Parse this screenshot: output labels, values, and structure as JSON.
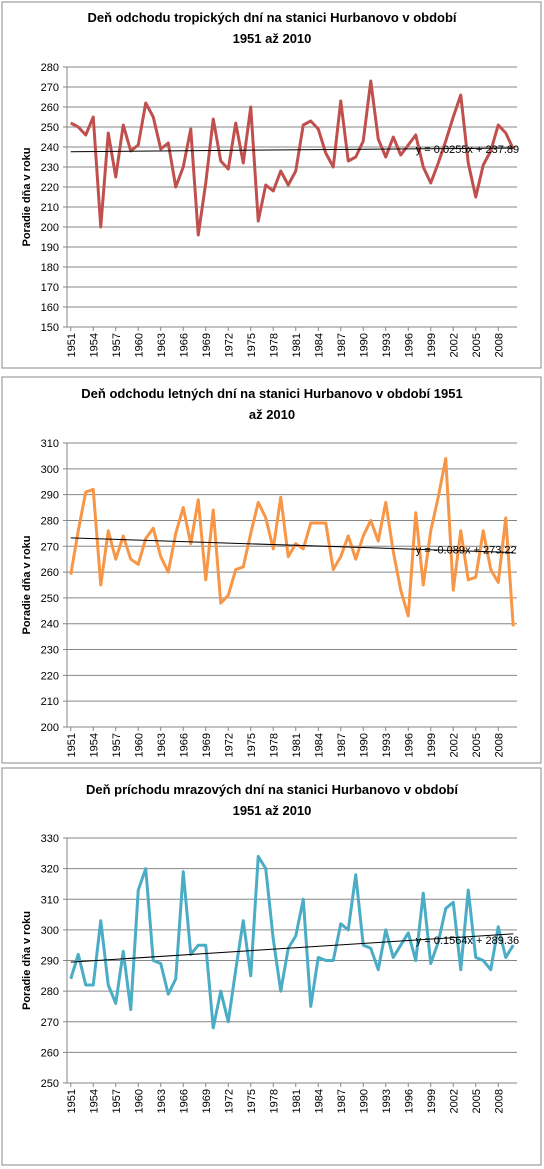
{
  "chart_data": [
    {
      "type": "line",
      "title": [
        "Deň odchodu tropických dní na stanici Hurbanovo v období",
        "1951 až 2010"
      ],
      "y_label": "Poradie dňa v roku",
      "color": "#c0504d",
      "trendline": true,
      "trend_label": "y = 0.0255x + 237.89",
      "grid": true,
      "categories": [
        1951,
        null,
        null,
        1954,
        null,
        null,
        1957,
        null,
        null,
        1960,
        null,
        null,
        1963,
        null,
        null,
        1966,
        null,
        null,
        1969,
        null,
        null,
        1972,
        null,
        null,
        1975,
        null,
        null,
        1978,
        null,
        null,
        1981,
        null,
        null,
        1984,
        null,
        null,
        1987,
        null,
        null,
        1990,
        null,
        null,
        1993,
        null,
        null,
        1996,
        null,
        null,
        1999,
        null,
        null,
        2002,
        null,
        null,
        2005,
        null,
        null,
        2008,
        null,
        null
      ],
      "values": [
        252,
        250,
        246,
        255,
        200,
        247,
        225,
        251,
        238,
        241,
        262,
        255,
        239,
        242,
        220,
        230,
        249,
        196,
        222,
        254,
        233,
        229,
        252,
        232,
        260,
        203,
        221,
        218,
        228,
        221,
        228,
        251,
        253,
        249,
        237,
        230,
        263,
        233,
        235,
        243,
        273,
        244,
        235,
        245,
        236,
        241,
        246,
        230,
        222,
        232,
        243,
        255,
        266,
        232,
        215,
        231,
        238,
        251,
        247,
        239
      ],
      "ylim": [
        150,
        280
      ],
      "yticks": [
        150,
        160,
        170,
        180,
        190,
        200,
        210,
        220,
        230,
        240,
        250,
        260,
        270,
        280
      ]
    },
    {
      "type": "line",
      "title": [
        "Deň odchodu letných dní na stanici Hurbanovo v období 1951",
        "až 2010"
      ],
      "y_label": "Poradie dňa v roku",
      "color": "#f79646",
      "trendline": true,
      "trend_label": "y = -0.089x + 273.22",
      "grid": true,
      "categories": [
        1951,
        null,
        null,
        1954,
        null,
        null,
        1957,
        null,
        null,
        1960,
        null,
        null,
        1963,
        null,
        null,
        1966,
        null,
        null,
        1969,
        null,
        null,
        1972,
        null,
        null,
        1975,
        null,
        null,
        1978,
        null,
        null,
        1981,
        null,
        null,
        1984,
        null,
        null,
        1987,
        null,
        null,
        1990,
        null,
        null,
        1993,
        null,
        null,
        1996,
        null,
        null,
        1999,
        null,
        null,
        2002,
        null,
        null,
        2005,
        null,
        null,
        2008,
        null,
        null
      ],
      "values": [
        259,
        276,
        291,
        292,
        255,
        276,
        265,
        274,
        265,
        263,
        273,
        277,
        266,
        260,
        275,
        285,
        271,
        288,
        257,
        284,
        248,
        251,
        261,
        262,
        275,
        287,
        281,
        269,
        289,
        266,
        271,
        269,
        279,
        279,
        279,
        261,
        266,
        274,
        265,
        274,
        280,
        272,
        287,
        268,
        253,
        243,
        283,
        255,
        276,
        289,
        304,
        253,
        276,
        257,
        258,
        276,
        261,
        256,
        281,
        239
      ],
      "ylim": [
        200,
        310
      ],
      "yticks": [
        200,
        210,
        220,
        230,
        240,
        250,
        260,
        270,
        280,
        290,
        300,
        310
      ]
    },
    {
      "type": "line",
      "title": [
        "Deň príchodu mrazových dní na stanici Hurbanovo v období",
        "1951 až 2010"
      ],
      "y_label": "Poradie dňa v roku",
      "color": "#4bacc6",
      "trendline": true,
      "trend_label": "y = 0.1564x + 289.36",
      "grid": true,
      "categories": [
        1951,
        null,
        null,
        1954,
        null,
        null,
        1957,
        null,
        null,
        1960,
        null,
        null,
        1963,
        null,
        null,
        1966,
        null,
        null,
        1969,
        null,
        null,
        1972,
        null,
        null,
        1975,
        null,
        null,
        1978,
        null,
        null,
        1981,
        null,
        null,
        1984,
        null,
        null,
        1987,
        null,
        null,
        1990,
        null,
        null,
        1993,
        null,
        null,
        1996,
        null,
        null,
        1999,
        null,
        null,
        2002,
        null,
        null,
        2005,
        null,
        null,
        2008,
        null,
        null
      ],
      "values": [
        284,
        292,
        282,
        282,
        303,
        282,
        276,
        293,
        274,
        313,
        320,
        290,
        289,
        279,
        284,
        319,
        292,
        295,
        295,
        268,
        280,
        270,
        287,
        303,
        285,
        324,
        320,
        297,
        280,
        294,
        298,
        310,
        275,
        291,
        290,
        290,
        302,
        300,
        318,
        295,
        294,
        287,
        300,
        291,
        295,
        299,
        290,
        312,
        289,
        296,
        307,
        309,
        287,
        313,
        291,
        290,
        287,
        301,
        291,
        295
      ],
      "ylim": [
        250,
        330
      ],
      "yticks": [
        250,
        260,
        270,
        280,
        290,
        300,
        310,
        320,
        330
      ]
    }
  ]
}
